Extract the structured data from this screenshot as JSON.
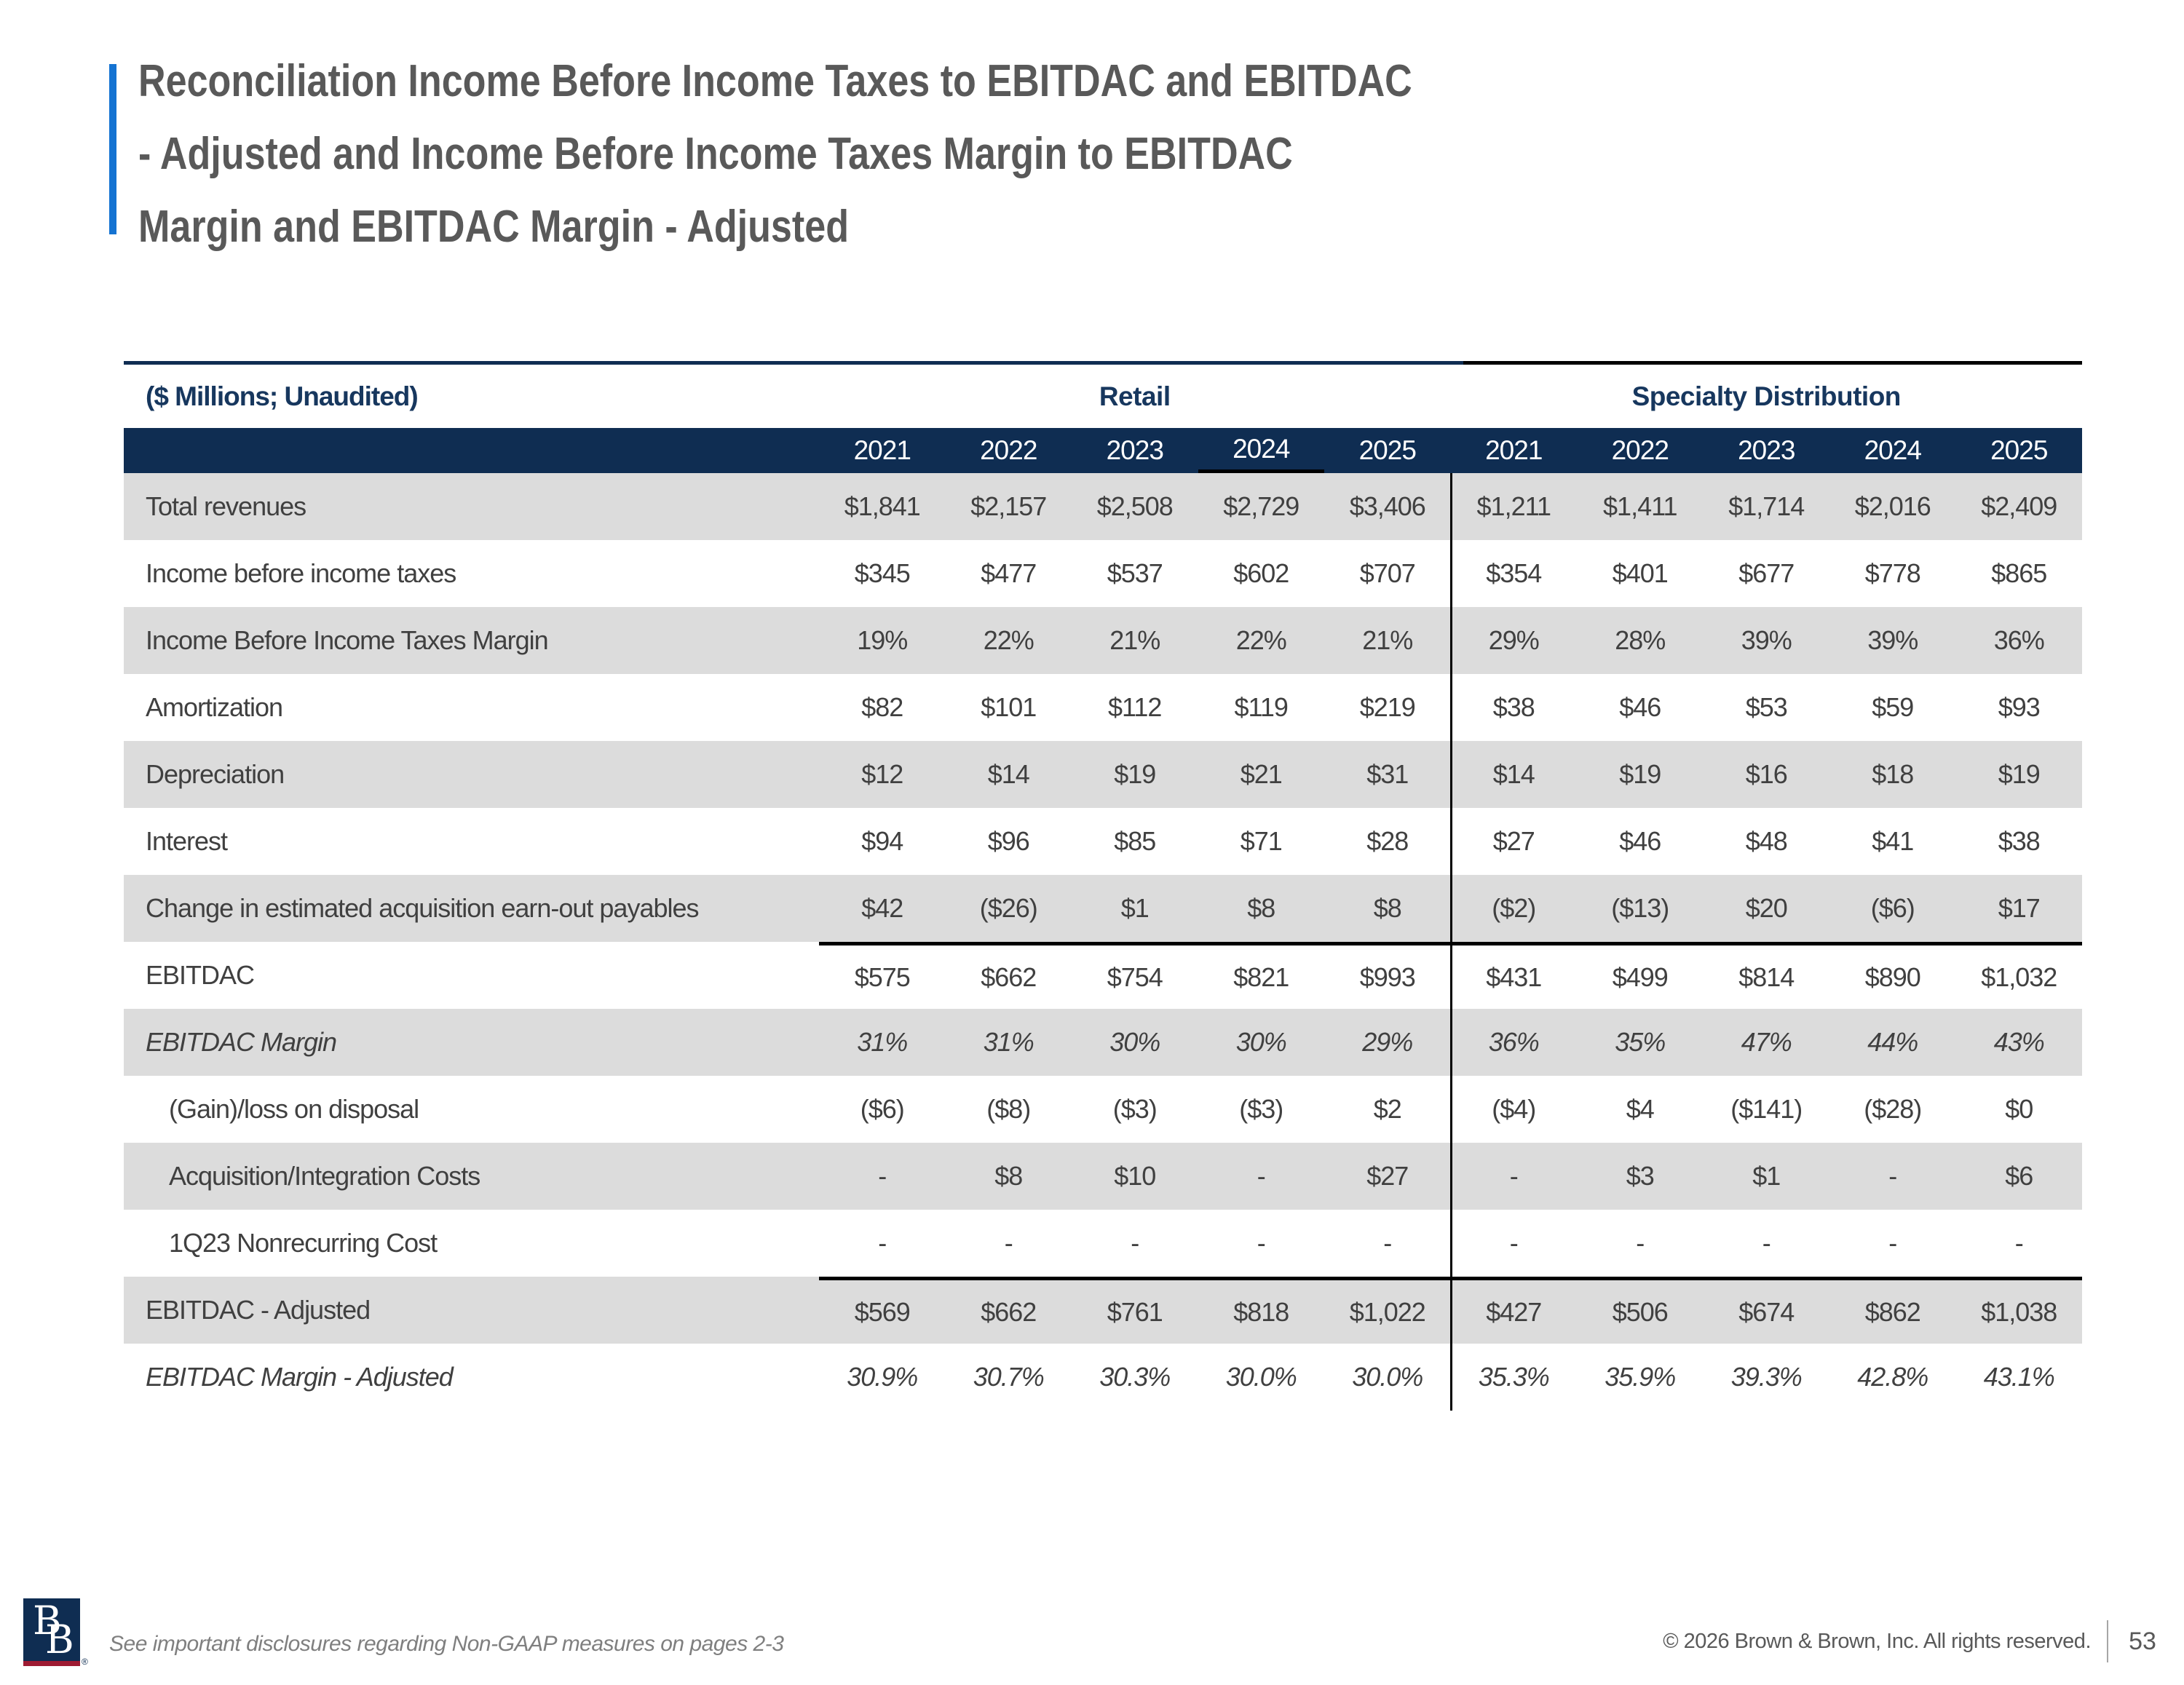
{
  "title": "Reconciliation Income Before Income Taxes to EBITDAC and EBITDAC - Adjusted and Income Before Income Taxes Margin to EBITDAC Margin and EBITDAC Margin - Adjusted",
  "colors": {
    "navy": "#0f2d52",
    "header_text": "#17375e",
    "accent_blue": "#1473d2",
    "row_gray": "#dcdcdc",
    "title_gray": "#595959",
    "cell_text": "#404040",
    "logo_red": "#9e1b32"
  },
  "table": {
    "units_label": "($ Millions; Unaudited)",
    "group_headers": [
      "Retail",
      "Specialty Distribution"
    ],
    "years": [
      "2021",
      "2022",
      "2023",
      "2024",
      "2025",
      "2021",
      "2022",
      "2023",
      "2024",
      "2025"
    ],
    "underlined_year_index": 3,
    "rows": [
      {
        "label": "Total revenues",
        "values": [
          "$1,841",
          "$2,157",
          "$2,508",
          "$2,729",
          "$3,406",
          "$1,211",
          "$1,411",
          "$1,714",
          "$2,016",
          "$2,409"
        ]
      },
      {
        "label": "Income before income taxes",
        "values": [
          "$345",
          "$477",
          "$537",
          "$602",
          "$707",
          "$354",
          "$401",
          "$677",
          "$778",
          "$865"
        ]
      },
      {
        "label": "Income Before Income Taxes Margin",
        "values": [
          "19%",
          "22%",
          "21%",
          "22%",
          "21%",
          "29%",
          "28%",
          "39%",
          "39%",
          "36%"
        ]
      },
      {
        "label": "Amortization",
        "values": [
          "$82",
          "$101",
          "$112",
          "$119",
          "$219",
          "$38",
          "$46",
          "$53",
          "$59",
          "$93"
        ]
      },
      {
        "label": "Depreciation",
        "values": [
          "$12",
          "$14",
          "$19",
          "$21",
          "$31",
          "$14",
          "$19",
          "$16",
          "$18",
          "$19"
        ]
      },
      {
        "label": "Interest",
        "values": [
          "$94",
          "$96",
          "$85",
          "$71",
          "$28",
          "$27",
          "$46",
          "$48",
          "$41",
          "$38"
        ]
      },
      {
        "label": "Change in estimated acquisition earn-out payables",
        "values": [
          "$42",
          "($26)",
          "$1",
          "$8",
          "$8",
          "($2)",
          "($13)",
          "$20",
          "($6)",
          "$17"
        ]
      },
      {
        "label": "EBITDAC",
        "sum_line": true,
        "values": [
          "$575",
          "$662",
          "$754",
          "$821",
          "$993",
          "$431",
          "$499",
          "$814",
          "$890",
          "$1,032"
        ]
      },
      {
        "label": "EBITDAC Margin",
        "italic": true,
        "values": [
          "31%",
          "31%",
          "30%",
          "30%",
          "29%",
          "36%",
          "35%",
          "47%",
          "44%",
          "43%"
        ]
      },
      {
        "label": "(Gain)/loss on disposal",
        "indent": true,
        "values": [
          "($6)",
          "($8)",
          "($3)",
          "($3)",
          "$2",
          "($4)",
          "$4",
          "($141)",
          "($28)",
          "$0"
        ]
      },
      {
        "label": "Acquisition/Integration Costs",
        "indent": true,
        "values": [
          "-",
          "$8",
          "$10",
          "-",
          "$27",
          "-",
          "$3",
          "$1",
          "-",
          "$6"
        ]
      },
      {
        "label": "1Q23 Nonrecurring Cost",
        "indent": true,
        "values": [
          "-",
          "-",
          "-",
          "-",
          "-",
          "-",
          "-",
          "-",
          "-",
          "-"
        ]
      },
      {
        "label": "EBITDAC - Adjusted",
        "sum_line": true,
        "values": [
          "$569",
          "$662",
          "$761",
          "$818",
          "$1,022",
          "$427",
          "$506",
          "$674",
          "$862",
          "$1,038"
        ]
      },
      {
        "label": "EBITDAC Margin - Adjusted",
        "italic": true,
        "values": [
          "30.9%",
          "30.7%",
          "30.3%",
          "30.0%",
          "30.0%",
          "35.3%",
          "35.9%",
          "39.3%",
          "42.8%",
          "43.1%"
        ]
      }
    ]
  },
  "footer": {
    "logo_letters": [
      "B",
      "B"
    ],
    "registered_mark": "®",
    "disclosure": "See important disclosures regarding Non-GAAP measures on pages 2-3",
    "copyright": "© 2026 Brown & Brown, Inc. All rights reserved.",
    "page_number": "53"
  }
}
